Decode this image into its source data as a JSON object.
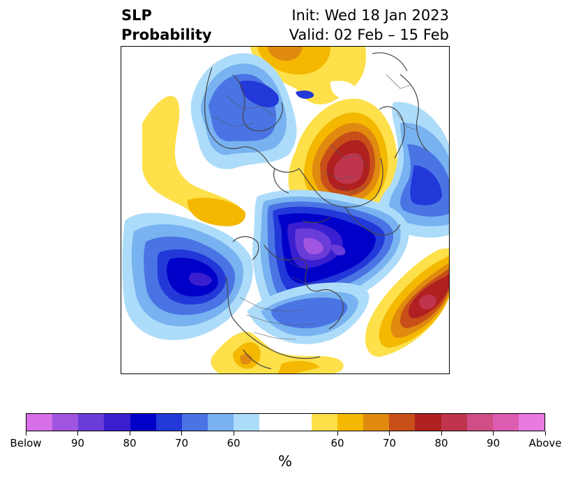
{
  "title": {
    "left_line1": "SLP",
    "left_line2": "Probability",
    "right_line1": "Init: Wed 18 Jan 2023",
    "right_line2": "Valid: 02 Feb – 15 Feb"
  },
  "colorbar": {
    "colors": [
      "#d66fe8",
      "#a055e0",
      "#6a3cd8",
      "#3a1fd0",
      "#0000c8",
      "#2238d8",
      "#4a74e4",
      "#78b2f0",
      "#addcfa",
      "#ffffff",
      "#ffffff",
      "#fde04a",
      "#f4b800",
      "#e08a10",
      "#c85018",
      "#b02020",
      "#c0354e",
      "#cf4e86",
      "#dc5cb2",
      "#e87ae0"
    ],
    "tick_labels": [
      "Below",
      "90",
      "80",
      "70",
      "60",
      "60",
      "70",
      "80",
      "90",
      "Above"
    ],
    "unit_label": "%"
  },
  "map": {
    "region": "Northern Hemisphere polar stereographic",
    "features": [
      "below-normal-north-pacific",
      "below-normal-canada-greenland",
      "below-normal-north-atlantic",
      "below-normal-scandinavia",
      "above-normal-siberia",
      "above-normal-central-atlantic",
      "above-normal-central-pacific",
      "above-normal-aleutian",
      "above-normal-mexico"
    ]
  }
}
